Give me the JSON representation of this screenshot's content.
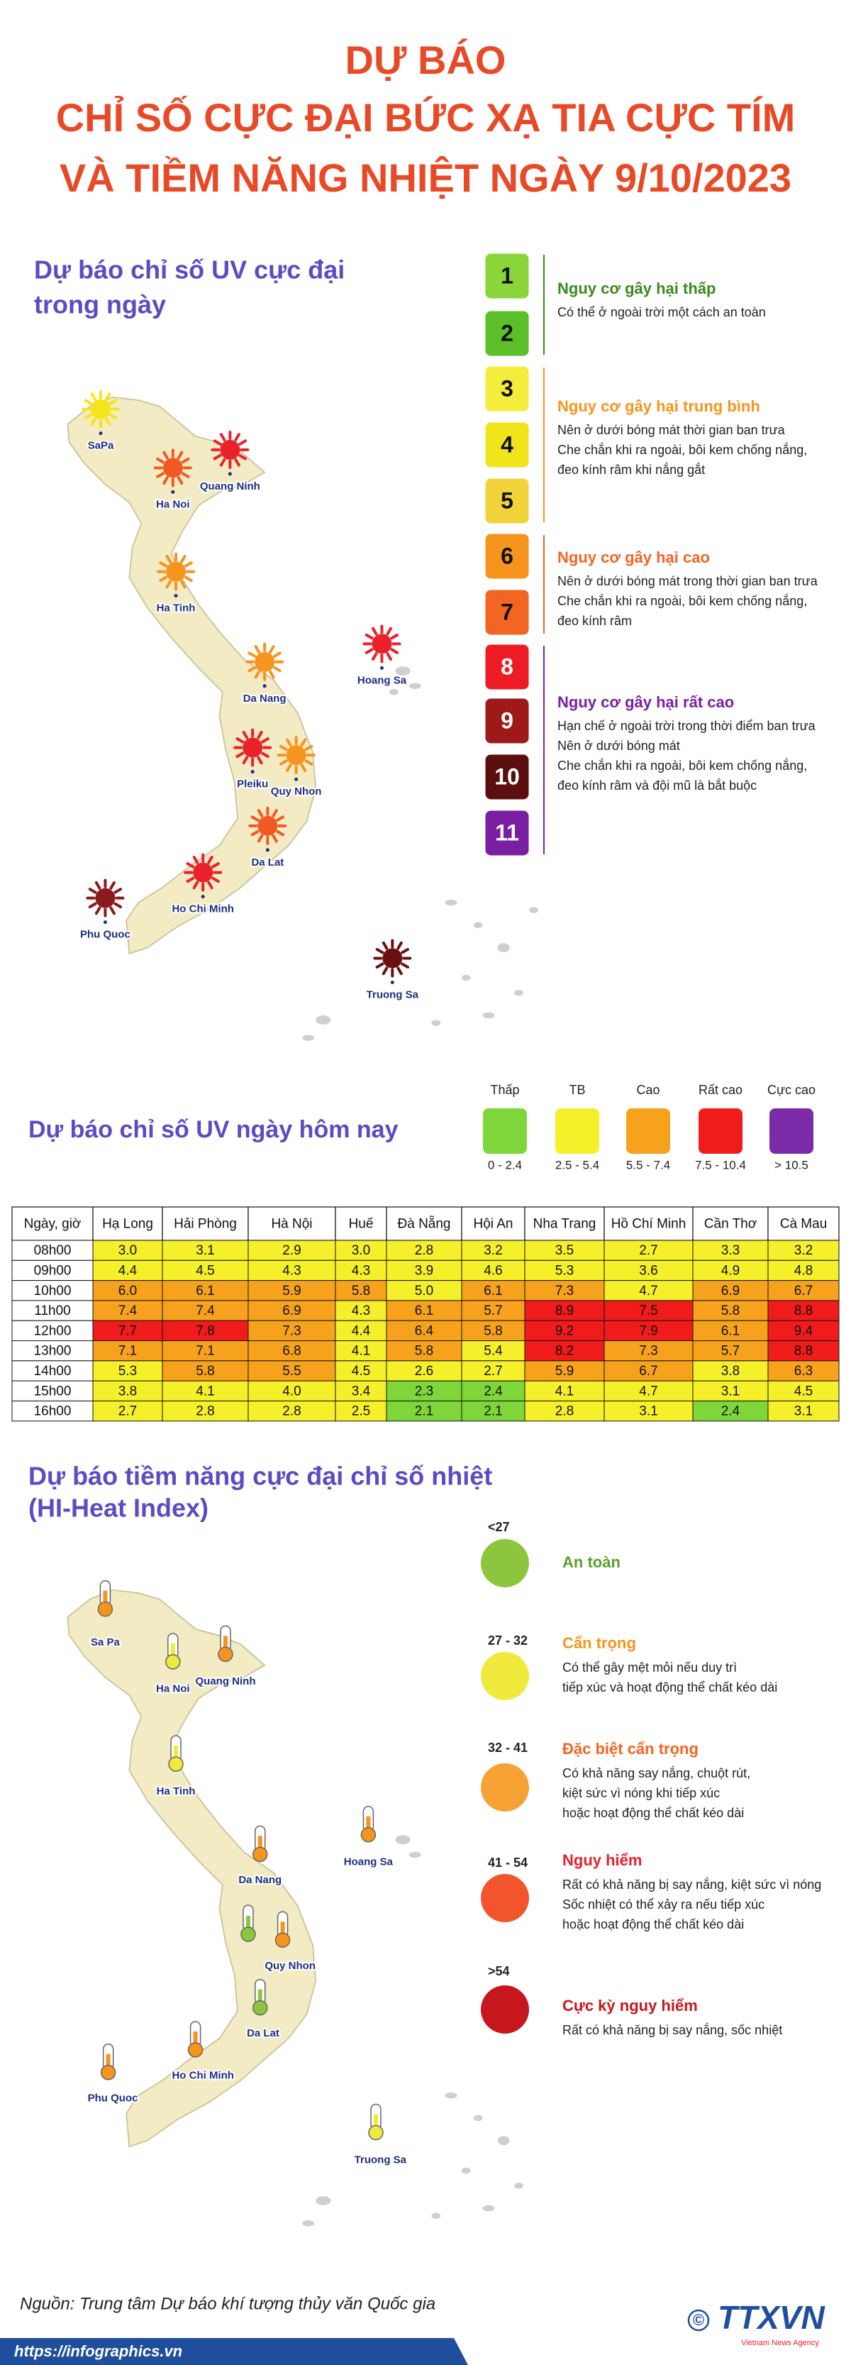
{
  "header": {
    "title_lines": [
      "DỰ BÁO",
      "CHỈ SỐ CỰC ĐẠI BỨC XẠ TIA CỰC TÍM",
      "VÀ TIỀM NĂNG NHIỆT NGÀY 9/10/2023"
    ]
  },
  "uv_max": {
    "heading_lines": [
      "Dự báo chỉ số UV cực đại",
      "trong ngày"
    ],
    "levels": [
      {
        "label": 1,
        "color": "#8ad63a"
      },
      {
        "label": 2,
        "color": "#5cbf2a"
      },
      {
        "label": 3,
        "color": "#f5ed3b"
      },
      {
        "label": 4,
        "color": "#f2e41b"
      },
      {
        "label": 5,
        "color": "#f3d33a"
      },
      {
        "label": 6,
        "color": "#f7941d"
      },
      {
        "label": 7,
        "color": "#f26522"
      },
      {
        "label": 8,
        "color": "#ed1c24"
      },
      {
        "label": 9,
        "color": "#9e1a1a"
      },
      {
        "label": 10,
        "color": "#5a0e0e"
      },
      {
        "label": 11,
        "color": "#7a1fa2"
      }
    ],
    "groups": [
      {
        "title": "Nguy cơ gây hại thấp",
        "color": "#3a8a1e",
        "lines": [
          "Có thể ở ngoài trời một cách an toàn"
        ]
      },
      {
        "title": "Nguy cơ gây hại trung bình",
        "color": "#f7941d",
        "lines": [
          "Nên ở dưới bóng mát thời gian ban trưa",
          "Che chắn khi ra ngoài, bôi kem chống nắng,",
          "đeo kính râm khi nắng gắt"
        ]
      },
      {
        "title": "Nguy cơ gây hại cao",
        "color": "#f26522",
        "lines": [
          "Nên ở dưới bóng mát trong thời gian ban trưa",
          "Che chắn khi ra ngoài, bôi kem chống nắng,",
          "đeo kính râm"
        ]
      },
      {
        "title": "Nguy cơ gây hại rất cao",
        "color": "#7a1fa2",
        "lines": [
          "Hạn chế ở ngoài trời trong thời điểm ban trưa",
          "Nên ở dưới bóng mát",
          "Che chắn khi ra ngoài, bôi kem chống nắng,",
          "đeo kính râm và đội mũ là bắt buộc"
        ]
      }
    ],
    "map": {
      "cities": [
        {
          "name": "SaPa",
          "color": "#f6e51c"
        },
        {
          "name": "Ha Noi",
          "color": "#f05a22"
        },
        {
          "name": "Quang Ninh",
          "color": "#e8212b"
        },
        {
          "name": "Ha Tinh",
          "color": "#f7941d"
        },
        {
          "name": "Hoang Sa",
          "color": "#e8212b"
        },
        {
          "name": "Da Nang",
          "color": "#f7941d"
        },
        {
          "name": "Pleiku",
          "color": "#e8212b"
        },
        {
          "name": "Quy Nhon",
          "color": "#f7941d"
        },
        {
          "name": "Da Lat",
          "color": "#f05a22"
        },
        {
          "name": "Ho Chi Minh",
          "color": "#e8212b"
        },
        {
          "name": "Phu Quoc",
          "color": "#8b1a1a"
        },
        {
          "name": "Truong Sa",
          "color": "#6b1010"
        }
      ]
    }
  },
  "uv_today": {
    "heading": "Dự báo chỉ số UV ngày hôm nay",
    "legend": [
      {
        "name": "Thấp",
        "range": "0 - 2.4",
        "color": "#7ed63a"
      },
      {
        "name": "TB",
        "range": "2.5 - 5.4",
        "color": "#f5f02a"
      },
      {
        "name": "Cao",
        "range": "5.5 - 7.4",
        "color": "#f7a21d"
      },
      {
        "name": "Rất cao",
        "range": "7.5 - 10.4",
        "color": "#f01c1c"
      },
      {
        "name": "Cực cao",
        "range": "> 10.5",
        "color": "#7b2aa8"
      }
    ],
    "table": {
      "header": [
        "Ngày, giờ",
        "Hạ Long",
        "Hải Phòng",
        "Hà Nội",
        "Huế",
        "Đà Nẵng",
        "Hội An",
        "Nha Trang",
        "Hồ Chí Minh",
        "Cần Thơ",
        "Cà Mau"
      ],
      "rows": [
        [
          "08h00",
          "3.0",
          "3.1",
          "2.9",
          "3.0",
          "2.8",
          "3.2",
          "3.5",
          "2.7",
          "3.3",
          "3.2"
        ],
        [
          "09h00",
          "4.4",
          "4.5",
          "4.3",
          "4.3",
          "3.9",
          "4.6",
          "5.3",
          "3.6",
          "4.9",
          "4.8"
        ],
        [
          "10h00",
          "6.0",
          "6.1",
          "5.9",
          "5.8",
          "5.0",
          "6.1",
          "7.3",
          "4.7",
          "6.9",
          "6.7"
        ],
        [
          "11h00",
          "7.4",
          "7.4",
          "6.9",
          "4.3",
          "6.1",
          "5.7",
          "8.9",
          "7.5",
          "5.8",
          "8.8"
        ],
        [
          "12h00",
          "7.7",
          "7.8",
          "7.3",
          "4.4",
          "6.4",
          "5.8",
          "9.2",
          "7.9",
          "6.1",
          "9.4"
        ],
        [
          "13h00",
          "7.1",
          "7.1",
          "6.8",
          "4.1",
          "5.8",
          "5.4",
          "8.2",
          "7.3",
          "5.7",
          "8.8"
        ],
        [
          "14h00",
          "5.3",
          "5.8",
          "5.5",
          "4.5",
          "2.6",
          "2.7",
          "5.9",
          "6.7",
          "3.8",
          "6.3"
        ],
        [
          "15h00",
          "3.8",
          "4.1",
          "4.0",
          "3.4",
          "2.3",
          "2.4",
          "4.1",
          "4.7",
          "3.1",
          "4.5"
        ],
        [
          "16h00",
          "2.7",
          "2.8",
          "2.8",
          "2.5",
          "2.1",
          "2.1",
          "2.8",
          "3.1",
          "2.4",
          "3.1"
        ]
      ]
    }
  },
  "heat_index": {
    "heading_lines": [
      "Dự báo tiềm năng cực đại chỉ số nhiệt",
      "(HI-Heat Index)"
    ],
    "levels": [
      {
        "range": "<27",
        "color": "#8cc63f",
        "title": "An toàn",
        "title_color": "#5aa02c"
      },
      {
        "range": "27 - 32",
        "color": "#f0ea3c",
        "title": "Cẩn trọng",
        "title_color": "#f7941d",
        "lines": [
          "Có thể gây mệt mỏi nếu duy trì",
          "tiếp xúc và hoạt động thể chất kéo dài"
        ]
      },
      {
        "range": "32 - 41",
        "color": "#f7a234",
        "title": "Đặc biệt cẩn trọng",
        "title_color": "#f26522",
        "lines": [
          "Có khả năng say nắng, chuột rút,",
          "kiệt sức vì nóng khi tiếp xúc",
          "hoặc hoạt động thể chất kéo dài"
        ]
      },
      {
        "range": "41 - 54",
        "color": "#f2552c",
        "title": "Nguy hiểm",
        "title_color": "#e8212b",
        "lines": [
          "Rất có khả năng bị say nắng, kiệt sức vì nóng",
          "Sốc nhiệt có thể xảy ra nếu tiếp xúc",
          "hoặc hoạt động thể chất kéo dài"
        ]
      },
      {
        "range": ">54",
        "color": "#c8161d",
        "title": "Cực kỳ nguy hiểm",
        "title_color": "#c8161d",
        "lines": [
          "Rất có khả năng bị say nắng, sốc nhiệt"
        ]
      }
    ],
    "map": {
      "cities": [
        {
          "name": "Sa Pa",
          "color": "#f7941d"
        },
        {
          "name": "Ha Noi",
          "color": "#f0ea3c"
        },
        {
          "name": "Quang Ninh",
          "color": "#f7941d"
        },
        {
          "name": "Ha Tinh",
          "color": "#f0ea3c"
        },
        {
          "name": "Hoang Sa",
          "color": "#f7941d"
        },
        {
          "name": "Da Nang",
          "color": "#f7941d"
        },
        {
          "name": "Quy Nhon",
          "color": "#f7941d"
        },
        {
          "name": "Da Lat",
          "color": "#8cc63f"
        },
        {
          "name": "Ho Chi Minh",
          "color": "#f7941d"
        },
        {
          "name": "Phu Quoc",
          "color": "#f7941d"
        },
        {
          "name": "Truong Sa",
          "color": "#f0ea3c"
        }
      ]
    }
  },
  "footer": {
    "source": "Nguồn: Trung tâm Dự báo khí tượng thủy văn Quốc gia",
    "url": "https://infographics.vn",
    "logo_mark": "©",
    "logo": "TTXVN",
    "logo_sub": "Vietnam News Agency"
  }
}
